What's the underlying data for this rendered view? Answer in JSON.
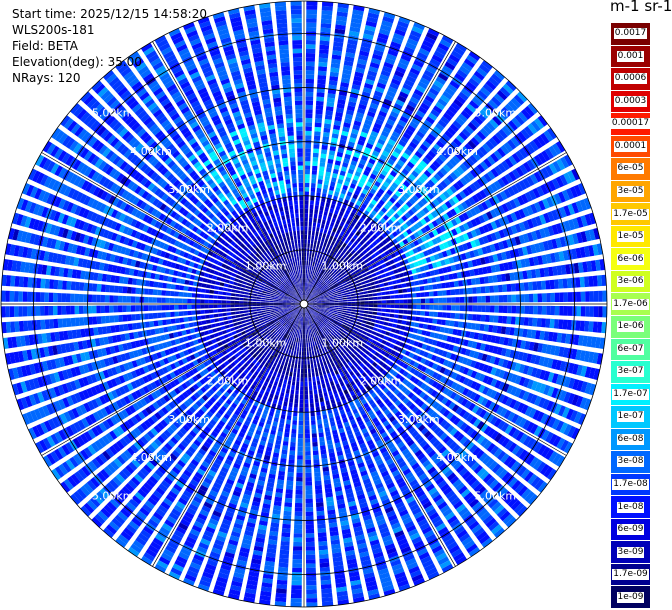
{
  "info": {
    "start_time": "Start time: 2025/12/15 14:58:20",
    "instrument": "WLS200s-181",
    "field": "Field: BETA",
    "elevation": "Elevation(deg): 35.00",
    "nrays": "NRays: 120"
  },
  "colorbar": {
    "title": "m-1 sr-1",
    "ticks": [
      "0.0017",
      "0.001",
      "0.0006",
      "0.0003",
      "0.00017",
      "0.0001",
      "6e-05",
      "3e-05",
      "1.7e-05",
      "1e-05",
      "6e-06",
      "3e-06",
      "1.7e-06",
      "1e-06",
      "6e-07",
      "3e-07",
      "1.7e-07",
      "1e-07",
      "6e-08",
      "3e-08",
      "1.7e-08",
      "1e-08",
      "6e-09",
      "3e-09",
      "1.7e-09",
      "1e-09"
    ],
    "colors": [
      "#7a0000",
      "#9a0000",
      "#c00000",
      "#e00000",
      "#ff1a00",
      "#ff4a00",
      "#ff7a00",
      "#ffa500",
      "#ffc800",
      "#ffe800",
      "#f5ff10",
      "#d0ff20",
      "#a8ff50",
      "#7aff7a",
      "#50ffa0",
      "#28ffd0",
      "#00f0ff",
      "#00c8ff",
      "#0098ff",
      "#0068ff",
      "#0038ff",
      "#0010ff",
      "#0000e0",
      "#0000b8",
      "#000090",
      "#000060"
    ]
  },
  "chart_data": {
    "type": "heatmap",
    "subtype": "polar-ppi",
    "field": "BETA",
    "units": "m-1 sr-1",
    "nrays": 120,
    "elevation_deg": 35.0,
    "range_ring_labels": [
      "1.00km",
      "2.00km",
      "3.00km",
      "4.00km",
      "5.00km"
    ],
    "range_rings_km": [
      1,
      2,
      3,
      4,
      5
    ],
    "max_range_km": 5.6,
    "colorscale": "log",
    "value_range": [
      1e-09,
      0.0017
    ],
    "dominant_value_range": [
      1e-08,
      1e-07
    ],
    "description_cells": "speckled field mostly 1e-08 to 6e-08 with cyan/green band near 2-3 km range in the north-northeast sector"
  }
}
